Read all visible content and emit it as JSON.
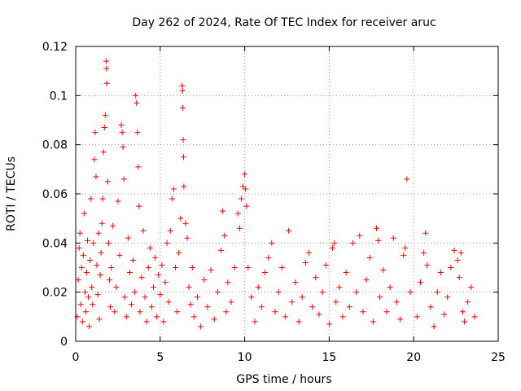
{
  "chart_data": {
    "type": "scatter",
    "title": "Day 262 of 2024, Rate Of TEC Index for receiver aruc",
    "xlabel": "GPS time / hours",
    "ylabel": "ROTI / TECUs",
    "xlim": [
      0,
      25
    ],
    "ylim": [
      0,
      0.12
    ],
    "xticks": [
      0,
      5,
      10,
      15,
      20,
      25
    ],
    "xtick_labels": [
      "0",
      "5",
      "10",
      "15",
      "20",
      "25"
    ],
    "yticks": [
      0,
      0.02,
      0.04,
      0.06,
      0.08,
      0.1,
      0.12
    ],
    "ytick_labels": [
      "0",
      "0.02",
      "0.04",
      "0.06",
      "0.08",
      "0.1",
      "0.12"
    ],
    "grid": true,
    "marker": "+",
    "color": "#ff0000",
    "series": [
      {
        "points": [
          [
            0.1,
            0.01
          ],
          [
            0.15,
            0.025
          ],
          [
            0.2,
            0.038
          ],
          [
            0.25,
            0.044
          ],
          [
            0.3,
            0.015
          ],
          [
            0.35,
            0.03
          ],
          [
            0.4,
            0.008
          ],
          [
            0.45,
            0.035
          ],
          [
            0.5,
            0.052
          ],
          [
            0.55,
            0.02
          ],
          [
            0.6,
            0.012
          ],
          [
            0.65,
            0.028
          ],
          [
            0.7,
            0.041
          ],
          [
            0.75,
            0.018
          ],
          [
            0.8,
            0.006
          ],
          [
            0.85,
            0.033
          ],
          [
            0.9,
            0.058
          ],
          [
            0.95,
            0.022
          ],
          [
            1.0,
            0.015
          ],
          [
            1.05,
            0.04
          ],
          [
            1.1,
            0.074
          ],
          [
            1.15,
            0.085
          ],
          [
            1.2,
            0.067
          ],
          [
            1.25,
            0.031
          ],
          [
            1.3,
            0.019
          ],
          [
            1.35,
            0.044
          ],
          [
            1.4,
            0.009
          ],
          [
            1.45,
            0.027
          ],
          [
            1.5,
            0.036
          ],
          [
            1.55,
            0.048
          ],
          [
            1.6,
            0.058
          ],
          [
            1.65,
            0.077
          ],
          [
            1.7,
            0.087
          ],
          [
            1.75,
            0.092
          ],
          [
            1.8,
            0.114
          ],
          [
            1.82,
            0.111
          ],
          [
            1.84,
            0.105
          ],
          [
            1.9,
            0.065
          ],
          [
            1.95,
            0.04
          ],
          [
            2.0,
            0.025
          ],
          [
            2.05,
            0.014
          ],
          [
            2.1,
            0.03
          ],
          [
            2.2,
            0.047
          ],
          [
            2.3,
            0.012
          ],
          [
            2.4,
            0.022
          ],
          [
            2.5,
            0.057
          ],
          [
            2.6,
            0.035
          ],
          [
            2.7,
            0.088
          ],
          [
            2.75,
            0.085
          ],
          [
            2.8,
            0.079
          ],
          [
            2.85,
            0.066
          ],
          [
            2.9,
            0.018
          ],
          [
            3.0,
            0.01
          ],
          [
            3.1,
            0.042
          ],
          [
            3.2,
            0.028
          ],
          [
            3.3,
            0.015
          ],
          [
            3.4,
            0.033
          ],
          [
            3.5,
            0.02
          ],
          [
            3.55,
            0.1
          ],
          [
            3.6,
            0.097
          ],
          [
            3.65,
            0.085
          ],
          [
            3.7,
            0.071
          ],
          [
            3.75,
            0.055
          ],
          [
            3.8,
            0.012
          ],
          [
            3.9,
            0.026
          ],
          [
            4.0,
            0.045
          ],
          [
            4.1,
            0.018
          ],
          [
            4.2,
            0.008
          ],
          [
            4.3,
            0.03
          ],
          [
            4.4,
            0.038
          ],
          [
            4.5,
            0.014
          ],
          [
            4.6,
            0.022
          ],
          [
            4.7,
            0.034
          ],
          [
            4.8,
            0.01
          ],
          [
            4.9,
            0.027
          ],
          [
            5.0,
            0.019
          ],
          [
            5.1,
            0.031
          ],
          [
            5.2,
            0.008
          ],
          [
            5.3,
            0.024
          ],
          [
            5.4,
            0.04
          ],
          [
            5.5,
            0.016
          ],
          [
            5.6,
            0.045
          ],
          [
            5.7,
            0.058
          ],
          [
            5.8,
            0.062
          ],
          [
            5.9,
            0.03
          ],
          [
            6.0,
            0.012
          ],
          [
            6.1,
            0.036
          ],
          [
            6.2,
            0.05
          ],
          [
            6.3,
            0.104
          ],
          [
            6.32,
            0.102
          ],
          [
            6.34,
            0.095
          ],
          [
            6.36,
            0.082
          ],
          [
            6.38,
            0.075
          ],
          [
            6.4,
            0.063
          ],
          [
            6.5,
            0.048
          ],
          [
            6.6,
            0.042
          ],
          [
            6.7,
            0.022
          ],
          [
            6.8,
            0.015
          ],
          [
            6.9,
            0.03
          ],
          [
            7.0,
            0.01
          ],
          [
            7.2,
            0.018
          ],
          [
            7.4,
            0.006
          ],
          [
            7.6,
            0.025
          ],
          [
            7.8,
            0.014
          ],
          [
            8.0,
            0.029
          ],
          [
            8.2,
            0.009
          ],
          [
            8.4,
            0.02
          ],
          [
            8.6,
            0.037
          ],
          [
            8.7,
            0.053
          ],
          [
            8.8,
            0.043
          ],
          [
            8.9,
            0.012
          ],
          [
            9.0,
            0.024
          ],
          [
            9.2,
            0.016
          ],
          [
            9.4,
            0.03
          ],
          [
            9.6,
            0.052
          ],
          [
            9.7,
            0.046
          ],
          [
            9.8,
            0.058
          ],
          [
            9.9,
            0.063
          ],
          [
            10.0,
            0.068
          ],
          [
            10.05,
            0.062
          ],
          [
            10.1,
            0.055
          ],
          [
            10.2,
            0.03
          ],
          [
            10.4,
            0.018
          ],
          [
            10.6,
            0.008
          ],
          [
            10.8,
            0.022
          ],
          [
            11.0,
            0.014
          ],
          [
            11.2,
            0.028
          ],
          [
            11.4,
            0.034
          ],
          [
            11.6,
            0.04
          ],
          [
            11.8,
            0.012
          ],
          [
            12.0,
            0.02
          ],
          [
            12.2,
            0.03
          ],
          [
            12.4,
            0.01
          ],
          [
            12.6,
            0.045
          ],
          [
            12.8,
            0.016
          ],
          [
            13.0,
            0.024
          ],
          [
            13.2,
            0.008
          ],
          [
            13.4,
            0.018
          ],
          [
            13.6,
            0.032
          ],
          [
            13.8,
            0.036
          ],
          [
            14.0,
            0.014
          ],
          [
            14.2,
            0.026
          ],
          [
            14.4,
            0.011
          ],
          [
            14.6,
            0.02
          ],
          [
            14.8,
            0.031
          ],
          [
            15.0,
            0.007
          ],
          [
            15.2,
            0.038
          ],
          [
            15.3,
            0.04
          ],
          [
            15.4,
            0.016
          ],
          [
            15.6,
            0.022
          ],
          [
            15.8,
            0.01
          ],
          [
            16.0,
            0.028
          ],
          [
            16.2,
            0.014
          ],
          [
            16.4,
            0.04
          ],
          [
            16.6,
            0.02
          ],
          [
            16.8,
            0.043
          ],
          [
            17.0,
            0.012
          ],
          [
            17.2,
            0.025
          ],
          [
            17.4,
            0.034
          ],
          [
            17.6,
            0.008
          ],
          [
            17.8,
            0.046
          ],
          [
            17.9,
            0.041
          ],
          [
            18.0,
            0.018
          ],
          [
            18.2,
            0.029
          ],
          [
            18.4,
            0.012
          ],
          [
            18.6,
            0.022
          ],
          [
            18.8,
            0.042
          ],
          [
            19.0,
            0.016
          ],
          [
            19.2,
            0.009
          ],
          [
            19.4,
            0.035
          ],
          [
            19.5,
            0.038
          ],
          [
            19.6,
            0.066
          ],
          [
            19.8,
            0.02
          ],
          [
            20.2,
            0.01
          ],
          [
            20.4,
            0.024
          ],
          [
            20.6,
            0.036
          ],
          [
            20.7,
            0.044
          ],
          [
            20.8,
            0.031
          ],
          [
            21.0,
            0.014
          ],
          [
            21.2,
            0.006
          ],
          [
            21.4,
            0.02
          ],
          [
            21.6,
            0.028
          ],
          [
            21.8,
            0.011
          ],
          [
            22.0,
            0.018
          ],
          [
            22.2,
            0.03
          ],
          [
            22.4,
            0.037
          ],
          [
            22.6,
            0.033
          ],
          [
            22.7,
            0.026
          ],
          [
            22.8,
            0.036
          ],
          [
            22.9,
            0.012
          ],
          [
            23.0,
            0.008
          ],
          [
            23.2,
            0.016
          ],
          [
            23.4,
            0.022
          ],
          [
            23.6,
            0.01
          ]
        ]
      }
    ]
  }
}
